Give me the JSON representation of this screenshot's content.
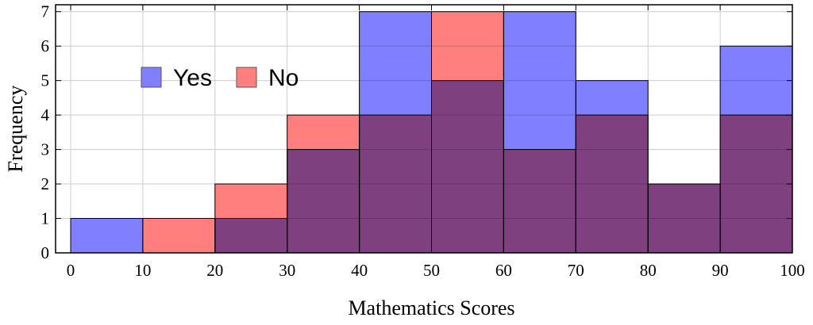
{
  "chart_data": {
    "type": "bar",
    "subtype": "overlapping-histogram",
    "bins": [
      [
        0,
        10
      ],
      [
        10,
        20
      ],
      [
        20,
        30
      ],
      [
        30,
        40
      ],
      [
        40,
        50
      ],
      [
        50,
        60
      ],
      [
        60,
        70
      ],
      [
        70,
        80
      ],
      [
        80,
        90
      ],
      [
        90,
        100
      ]
    ],
    "series": [
      {
        "name": "Yes",
        "color": "#7f7fff",
        "values": [
          1,
          0,
          1,
          3,
          7,
          5,
          7,
          5,
          2,
          6
        ]
      },
      {
        "name": "No",
        "color": "#ff7f7f",
        "values": [
          0,
          1,
          2,
          4,
          4,
          7,
          3,
          4,
          2,
          4
        ]
      }
    ],
    "overlap_color": "#c03a78",
    "xlabel": "Mathematics Scores",
    "ylabel": "Frequency",
    "xlim": [
      0,
      100
    ],
    "ylim": [
      0,
      7.2
    ],
    "xticks": [
      0,
      10,
      20,
      30,
      40,
      50,
      60,
      70,
      80,
      90,
      100
    ],
    "yticks": [
      0,
      1,
      2,
      3,
      4,
      5,
      6,
      7
    ],
    "grid": true,
    "legend_position": "upper-left"
  }
}
